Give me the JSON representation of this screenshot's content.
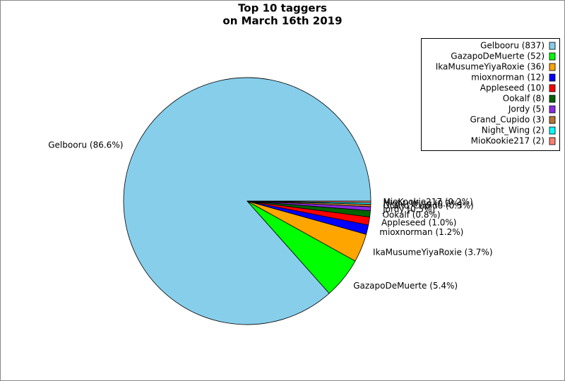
{
  "chart_data": {
    "type": "pie",
    "title": [
      "Top 10 taggers",
      "on March 16th 2019"
    ],
    "categories": [
      "Gelbooru",
      "GazapoDeMuerte",
      "IkaMusumeYiyaRoxie",
      "mioxnorman",
      "Appleseed",
      "Ookalf",
      "Jordy",
      "Grand_Cupido",
      "Night_Wing",
      "MioKookie217"
    ],
    "values": [
      837,
      52,
      36,
      12,
      10,
      8,
      5,
      3,
      2,
      2
    ],
    "legend_labels": [
      "Gelbooru (837)",
      "GazapoDeMuerte (52)",
      "IkaMusumeYiyaRoxie (36)",
      "mioxnorman (12)",
      "Appleseed (10)",
      "Ookalf (8)",
      "Jordy (5)",
      "Grand_Cupido (3)",
      "Night_Wing (2)",
      "MioKookie217 (2)"
    ],
    "value_labels": [
      "Gelbooru (86.6%)",
      "GazapoDeMuerte (5.4%)",
      "IkaMusumeYiyaRoxie (3.7%)",
      "mioxnorman (1.2%)",
      "Appleseed (1.0%)",
      "Ookalf (0.8%)",
      "Jordy (0.5%)",
      "Grand_Cupido (0.3%)",
      "Night_Wing (0.2%)",
      "MioKookie217 (0.2%)"
    ],
    "colors": [
      "#87ceeb",
      "#00ff00",
      "#ffa500",
      "#0000ff",
      "#ff0000",
      "#006400",
      "#8a2be2",
      "#b87333",
      "#00ffff",
      "#fa8072"
    ],
    "legend": "upper right"
  }
}
